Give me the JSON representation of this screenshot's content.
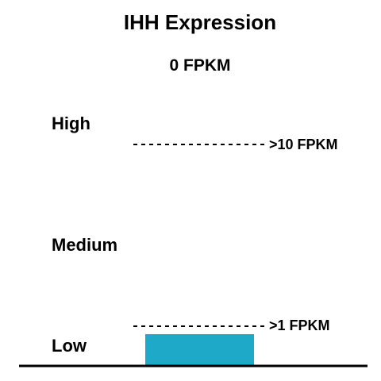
{
  "chart_data": {
    "type": "bar",
    "title": "IHH Expression",
    "value_label": "0 FPKM",
    "value": 0,
    "unit": "FPKM",
    "levels": [
      "High",
      "Medium",
      "Low"
    ],
    "thresholds": [
      {
        "label": ">10 FPKM",
        "value": 10
      },
      {
        "label": ">1 FPKM",
        "value": 1
      }
    ],
    "bar_color": "#1fa9c9",
    "baseline_color": "#000000"
  }
}
